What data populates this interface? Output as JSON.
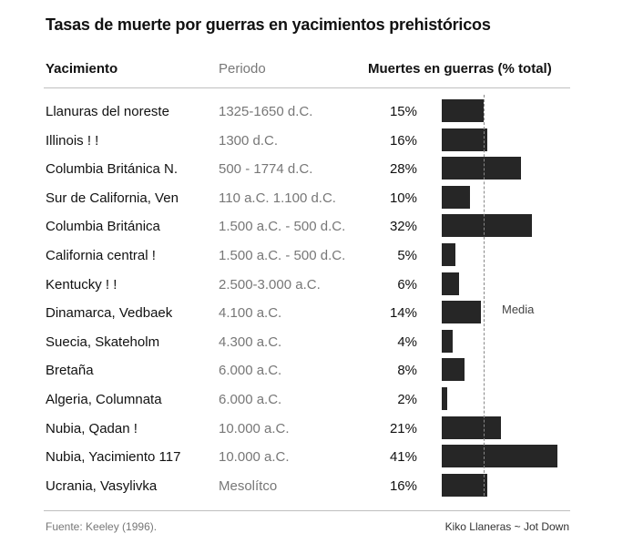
{
  "title": "Tasas de muerte por guerras en yacimientos prehistóricos",
  "headers": {
    "site": "Yacimiento",
    "period": "Periodo",
    "deaths": "Muertes en guerras (% total)"
  },
  "mean_label": "Media",
  "footer": {
    "source": "Fuente: Keeley (1996).",
    "credit": "Kiko Llaneras ~ Jot Down"
  },
  "chart_data": {
    "type": "bar",
    "orientation": "horizontal",
    "title": "Tasas de muerte por guerras en yacimientos prehistóricos",
    "xlabel": "Muertes en guerras (% total)",
    "categories": [
      "Llanuras del noreste",
      "Illinois !        !",
      "Columbia Británica N.",
      "Sur de California, Ven",
      "Columbia Británica",
      "California central !",
      "Kentucky !    !",
      "Dinamarca, Vedbaek",
      "Suecia, Skateholm",
      "Bretaña",
      "Algeria, Columnata",
      "Nubia, Qadan !",
      "Nubia, Yacimiento 117",
      "Ucrania, Vasylivka"
    ],
    "periods": [
      "1325-1650 d.C.",
      "1300 d.C.",
      "500 - 1774 d.C.",
      "110 a.C. 1.100 d.C.",
      "1.500 a.C. - 500 d.C.",
      "1.500 a.C. - 500 d.C.",
      "2.500-3.000 a.C.",
      "4.100 a.C.",
      "4.300 a.C.",
      "6.000 a.C.",
      "6.000 a.C.",
      "10.000 a.C.",
      "10.000 a.C.",
      "Mesolítco"
    ],
    "values": [
      15,
      16,
      28,
      10,
      32,
      5,
      6,
      14,
      4,
      8,
      2,
      21,
      41,
      16
    ],
    "value_labels": [
      "15%",
      "16%",
      "28%",
      "10%",
      "32%",
      "5%",
      "6%",
      "14%",
      "4%",
      "8%",
      "2%",
      "21%",
      "41%",
      "16%"
    ],
    "mean": 15,
    "xlim": [
      0,
      41
    ],
    "grid": false,
    "bar_color": "#262626"
  }
}
